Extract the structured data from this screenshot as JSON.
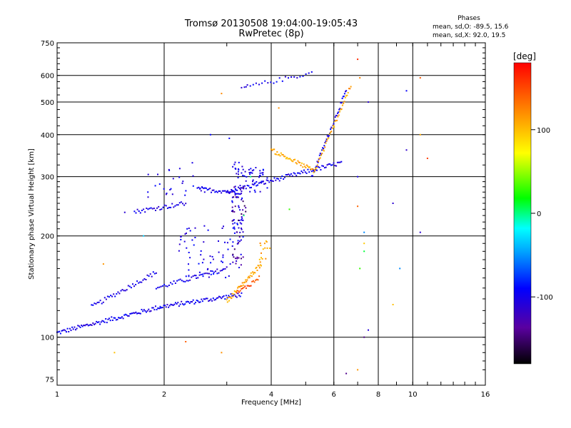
{
  "chart_data": {
    "type": "scatter",
    "title": "Tromsø 20130508 19:04:00-19:05:43",
    "subtitle": "RwPretec (8p)",
    "xlabel": "Frequency [MHz]",
    "ylabel": "Stationary phase Virtual Height [km]",
    "xscale": "log",
    "yscale": "log",
    "xlim": [
      1,
      16
    ],
    "ylim": [
      72,
      750
    ],
    "xticks": [
      1,
      2,
      4,
      6,
      8,
      10,
      16
    ],
    "xtick_labels": [
      "1",
      "2",
      "4",
      "6",
      "8",
      "10",
      "16"
    ],
    "yticks": [
      75,
      100,
      200,
      300,
      400,
      500,
      600,
      750
    ],
    "ytick_labels": [
      "75",
      "100",
      "200",
      "300",
      "400",
      "500",
      "600",
      "750"
    ],
    "grid": true,
    "phase_stats": {
      "title": "Phases",
      "o_line": "mean, sd,O: -89.5, 15.6",
      "x_line": "mean, sd,X:  92.0, 19.5"
    },
    "colorbar": {
      "label": "[deg]",
      "range": [
        -180,
        180
      ],
      "ticks": [
        100,
        0,
        -100
      ],
      "tick_labels": [
        "100",
        "0",
        "-100"
      ],
      "colors": [
        "#000000",
        "#5a00a0",
        "#0000ff",
        "#00a0ff",
        "#00ffff",
        "#00ff00",
        "#ffff00",
        "#ff8000",
        "#ff0000"
      ]
    },
    "series": [
      {
        "phase": -100,
        "traces": [
          {
            "f0": 1.0,
            "f1": 1.95,
            "h0": 103,
            "h1": 123,
            "n": 90
          },
          {
            "f0": 1.95,
            "f1": 3.3,
            "h0": 123,
            "h1": 134,
            "n": 70
          },
          {
            "f0": 1.25,
            "f1": 1.9,
            "h0": 123,
            "h1": 156,
            "n": 45
          },
          {
            "f0": 1.9,
            "f1": 3.0,
            "h0": 140,
            "h1": 160,
            "n": 45
          },
          {
            "f0": 3.0,
            "f1": 6.3,
            "h0": 270,
            "h1": 330,
            "n": 90
          },
          {
            "f0": 2.5,
            "f1": 3.3,
            "h0": 275,
            "h1": 270,
            "n": 35
          },
          {
            "f0": 1.65,
            "f1": 2.3,
            "h0": 236,
            "h1": 250,
            "n": 35
          },
          {
            "f0": 5.2,
            "f1": 6.5,
            "h0": 300,
            "h1": 540,
            "n": 45
          },
          {
            "f0": 3.3,
            "f1": 5.2,
            "h0": 550,
            "h1": 610,
            "n": 25
          }
        ],
        "clusters": [
          {
            "f0": 3.1,
            "f1": 3.35,
            "h0": 160,
            "h1": 340,
            "n": 70
          },
          {
            "f0": 2.2,
            "f1": 3.1,
            "h0": 150,
            "h1": 215,
            "n": 60
          },
          {
            "f0": 3.35,
            "f1": 3.9,
            "h0": 270,
            "h1": 320,
            "n": 35
          },
          {
            "f0": 1.8,
            "f1": 2.6,
            "h0": 260,
            "h1": 320,
            "n": 25
          }
        ],
        "sparse": [
          [
            1.55,
            235
          ],
          [
            1.8,
            270
          ],
          [
            2.4,
            330
          ],
          [
            2.6,
            270
          ],
          [
            3.4,
            555
          ],
          [
            9.6,
            540
          ],
          [
            8.8,
            250
          ],
          [
            7.5,
            500
          ],
          [
            7.5,
            105
          ],
          [
            9.6,
            360
          ],
          [
            10.5,
            205
          ],
          [
            2.7,
            400
          ],
          [
            3.05,
            390
          ],
          [
            7.0,
            300
          ]
        ]
      },
      {
        "phase": -140,
        "traces": [],
        "clusters": [
          {
            "f0": 3.1,
            "f1": 3.4,
            "h0": 160,
            "h1": 280,
            "n": 35
          }
        ],
        "sparse": [
          [
            7.3,
            100
          ],
          [
            6.5,
            78
          ]
        ]
      },
      {
        "phase": 110,
        "traces": [
          {
            "f0": 3.0,
            "f1": 3.75,
            "h0": 128,
            "h1": 165,
            "n": 45
          },
          {
            "f0": 4.0,
            "f1": 5.3,
            "h0": 360,
            "h1": 312,
            "n": 45
          },
          {
            "f0": 5.3,
            "f1": 6.7,
            "h0": 312,
            "h1": 560,
            "n": 40
          }
        ],
        "clusters": [
          {
            "f0": 3.7,
            "f1": 4.0,
            "h0": 165,
            "h1": 195,
            "n": 15
          }
        ],
        "sparse": [
          [
            2.9,
            530
          ],
          [
            1.35,
            165
          ],
          [
            1.45,
            90
          ],
          [
            2.9,
            90
          ],
          [
            4.2,
            480
          ],
          [
            7.1,
            590
          ],
          [
            7.3,
            190
          ],
          [
            8.8,
            125
          ],
          [
            10.5,
            400
          ],
          [
            7.0,
            80
          ]
        ]
      },
      {
        "phase": 150,
        "traces": [
          {
            "f0": 3.2,
            "f1": 3.7,
            "h0": 135,
            "h1": 150,
            "n": 20
          }
        ],
        "clusters": [],
        "sparse": [
          [
            2.3,
            97
          ],
          [
            7.0,
            245
          ],
          [
            10.5,
            590
          ],
          [
            11,
            340
          ]
        ]
      },
      {
        "phase": 175,
        "traces": [],
        "clusters": [],
        "sparse": [
          [
            7.0,
            670
          ]
        ]
      },
      {
        "phase": 0,
        "traces": [],
        "clusters": [],
        "sparse": [
          [
            3.35,
            230
          ],
          [
            7.3,
            180
          ],
          [
            3.5,
            300
          ]
        ]
      },
      {
        "phase": 40,
        "traces": [],
        "clusters": [],
        "sparse": [
          [
            7.1,
            160
          ],
          [
            4.5,
            240
          ]
        ]
      },
      {
        "phase": -45,
        "traces": [],
        "clusters": [],
        "sparse": [
          [
            7.3,
            205
          ],
          [
            9.2,
            160
          ],
          [
            1.75,
            200
          ]
        ]
      }
    ]
  }
}
